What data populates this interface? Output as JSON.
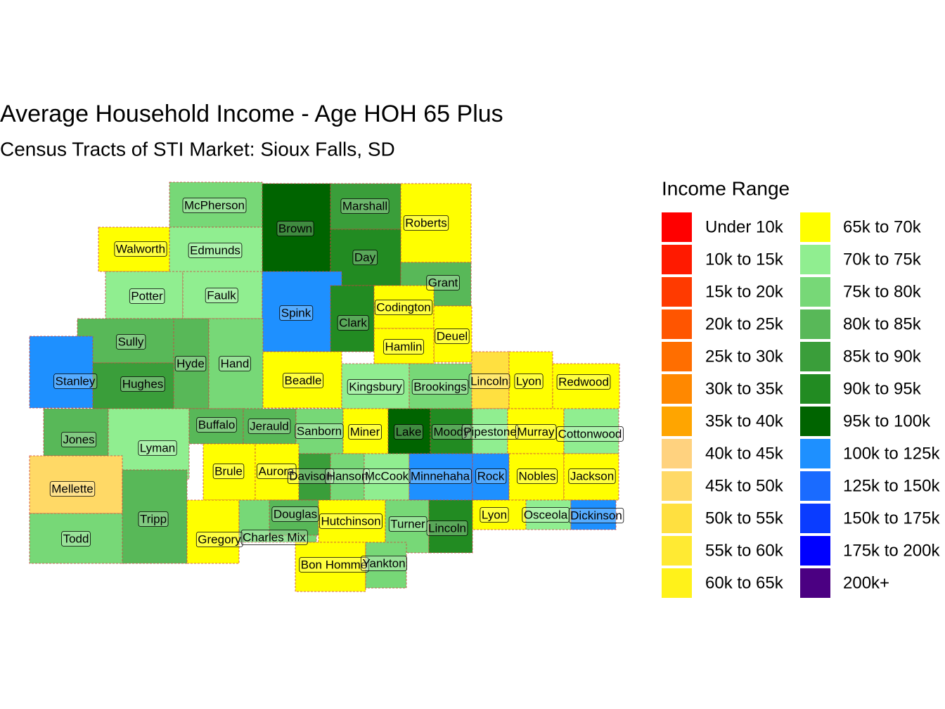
{
  "title": "Average Household Income - Age HOH 65 Plus",
  "subtitle": "Census Tracts of STI Market: Sioux Falls, SD",
  "legend": {
    "title": "Income Range",
    "items": [
      {
        "label": "Under 10k",
        "color": "#ff0000"
      },
      {
        "label": "10k to 15k",
        "color": "#ff1a00"
      },
      {
        "label": "15k to 20k",
        "color": "#ff3a00"
      },
      {
        "label": "20k to 25k",
        "color": "#ff5500"
      },
      {
        "label": "25k to 30k",
        "color": "#ff6e00"
      },
      {
        "label": "30k to 35k",
        "color": "#ff8800"
      },
      {
        "label": "35k to 40k",
        "color": "#ffa500"
      },
      {
        "label": "40k to 45k",
        "color": "#ffd27f"
      },
      {
        "label": "45k to 50k",
        "color": "#ffd966"
      },
      {
        "label": "50k to 55k",
        "color": "#ffe040"
      },
      {
        "label": "55k to 60k",
        "color": "#ffea33"
      },
      {
        "label": "60k to 65k",
        "color": "#fff21a"
      },
      {
        "label": "65k to 70k",
        "color": "#ffff00"
      },
      {
        "label": "70k to 75k",
        "color": "#90ee90"
      },
      {
        "label": "75k to 80k",
        "color": "#77d877"
      },
      {
        "label": "80k to 85k",
        "color": "#58b858"
      },
      {
        "label": "85k to 90k",
        "color": "#3a9e3a"
      },
      {
        "label": "90k to 95k",
        "color": "#228b22"
      },
      {
        "label": "95k to 100k",
        "color": "#006400"
      },
      {
        "label": "100k to 125k",
        "color": "#1e90ff"
      },
      {
        "label": "125k to 150k",
        "color": "#1a6bff"
      },
      {
        "label": "150k to 175k",
        "color": "#0a3cff"
      },
      {
        "label": "175k to 200k",
        "color": "#0000ff"
      },
      {
        "label": "200k+",
        "color": "#4b0082"
      }
    ]
  },
  "counties": [
    {
      "label": "McPherson",
      "color": "#77d877"
    },
    {
      "label": "Brown",
      "color": "#006400"
    },
    {
      "label": "Marshall",
      "color": "#3a9e3a"
    },
    {
      "label": "Roberts",
      "color": "#ffff00"
    },
    {
      "label": "Walworth",
      "color": "#ffff00"
    },
    {
      "label": "Edmunds",
      "color": "#90ee90"
    },
    {
      "label": "Day",
      "color": "#228b22"
    },
    {
      "label": "Grant",
      "color": "#58b858"
    },
    {
      "label": "Potter",
      "color": "#90ee90"
    },
    {
      "label": "Faulk",
      "color": "#90ee90"
    },
    {
      "label": "Spink",
      "color": "#1e90ff"
    },
    {
      "label": "Clark",
      "color": "#228b22"
    },
    {
      "label": "Codington",
      "color": "#ffff00"
    },
    {
      "label": "Deuel",
      "color": "#ffff00"
    },
    {
      "label": "Hamlin",
      "color": "#ffff00"
    },
    {
      "label": "Sully",
      "color": "#58b858"
    },
    {
      "label": "Hyde",
      "color": "#58b858"
    },
    {
      "label": "Hand",
      "color": "#77d877"
    },
    {
      "label": "Stanley",
      "color": "#1e90ff"
    },
    {
      "label": "Hughes",
      "color": "#3a9e3a"
    },
    {
      "label": "Beadle",
      "color": "#ffff00"
    },
    {
      "label": "Kingsbury",
      "color": "#90ee90"
    },
    {
      "label": "Brookings",
      "color": "#77d877"
    },
    {
      "label": "Lincoln",
      "color": "#ffe040"
    },
    {
      "label": "Lyon",
      "color": "#ffff00"
    },
    {
      "label": "Redwood",
      "color": "#ffff00"
    },
    {
      "label": "Jones",
      "color": "#58b858"
    },
    {
      "label": "Lyman",
      "color": "#90ee90"
    },
    {
      "label": "Buffalo",
      "color": "#58b858"
    },
    {
      "label": "Jerauld",
      "color": "#58b858"
    },
    {
      "label": "Sanborn",
      "color": "#77d877"
    },
    {
      "label": "Miner",
      "color": "#ffff00"
    },
    {
      "label": "Lake",
      "color": "#006400"
    },
    {
      "label": "Moody",
      "color": "#228b22"
    },
    {
      "label": "Pipestone",
      "color": "#90ee90"
    },
    {
      "label": "Murray",
      "color": "#ffff00"
    },
    {
      "label": "Cottonwood",
      "color": "#90ee90"
    },
    {
      "label": "Mellette",
      "color": "#ffd966"
    },
    {
      "label": "Brule",
      "color": "#ffff00"
    },
    {
      "label": "Aurora",
      "color": "#ffff00"
    },
    {
      "label": "Davison",
      "color": "#3a9e3a"
    },
    {
      "label": "Hanson",
      "color": "#77d877"
    },
    {
      "label": "McCook",
      "color": "#90ee90"
    },
    {
      "label": "Minnehaha",
      "color": "#1e90ff"
    },
    {
      "label": "Rock",
      "color": "#1e90ff"
    },
    {
      "label": "Nobles",
      "color": "#ffff00"
    },
    {
      "label": "Jackson",
      "color": "#ffff00"
    },
    {
      "label": "Todd",
      "color": "#77d877"
    },
    {
      "label": "Tripp",
      "color": "#58b858"
    },
    {
      "label": "Gregory",
      "color": "#ffff00"
    },
    {
      "label": "Charles Mix",
      "color": "#77d877"
    },
    {
      "label": "Douglas",
      "color": "#58b858"
    },
    {
      "label": "Hutchinson",
      "color": "#ffff00"
    },
    {
      "label": "Turner",
      "color": "#77d877"
    },
    {
      "label": "Lincoln",
      "color": "#228b22"
    },
    {
      "label": "Lyon",
      "color": "#ffff00"
    },
    {
      "label": "Osceola",
      "color": "#90ee90"
    },
    {
      "label": "Dickinson",
      "color": "#1e90ff"
    },
    {
      "label": "Bon Homme",
      "color": "#ffff00"
    },
    {
      "label": "Yankton",
      "color": "#77d877"
    }
  ]
}
